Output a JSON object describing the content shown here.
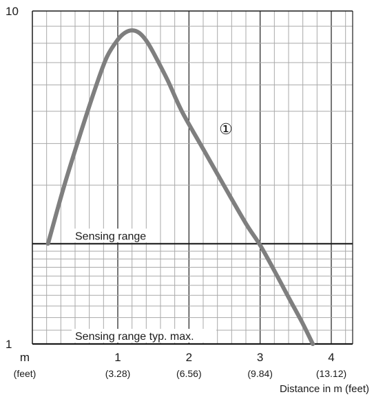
{
  "chart_data": {
    "type": "line",
    "title": "",
    "xlabel": "Distance in m (feet)",
    "ylabel": "",
    "xlim": [
      -0.2,
      4.3
    ],
    "ylim": [
      1,
      10
    ],
    "y_scale": "log",
    "grid": true,
    "x_unit_label": "m",
    "x_unit_label_alt": "(feet)",
    "x_ticks": [
      {
        "value": 1,
        "label": "1",
        "alt": "(3.28)"
      },
      {
        "value": 2,
        "label": "2",
        "alt": "(6.56)"
      },
      {
        "value": 3,
        "label": "3",
        "alt": "(9.84)"
      },
      {
        "value": 4,
        "label": "4",
        "alt": "(13.12)"
      }
    ],
    "y_ticks": [
      {
        "value": 10,
        "label": "10"
      },
      {
        "value": 1,
        "label": "1"
      }
    ],
    "reference_lines": [
      {
        "y": 2,
        "label": "Sensing range"
      },
      {
        "y": 1,
        "label": "Sensing range typ. max."
      }
    ],
    "series": [
      {
        "marker": "①",
        "color": "#7f7f7f",
        "x": [
          0.02,
          0.25,
          0.5,
          0.7,
          0.85,
          1.0,
          1.1,
          1.2,
          1.3,
          1.4,
          1.5,
          1.7,
          1.9,
          2.2,
          2.5,
          2.8,
          3.0,
          3.2,
          3.4,
          3.6,
          3.74
        ],
        "y": [
          2.0,
          3.0,
          4.45,
          6.0,
          7.3,
          8.2,
          8.6,
          8.75,
          8.6,
          8.15,
          7.5,
          6.2,
          5.0,
          3.85,
          2.97,
          2.3,
          1.98,
          1.66,
          1.38,
          1.15,
          1.0
        ]
      }
    ]
  },
  "colors": {
    "grid": "#a9a9a9",
    "axis": "#1a1a1a",
    "curve": "#7f7f7f"
  }
}
